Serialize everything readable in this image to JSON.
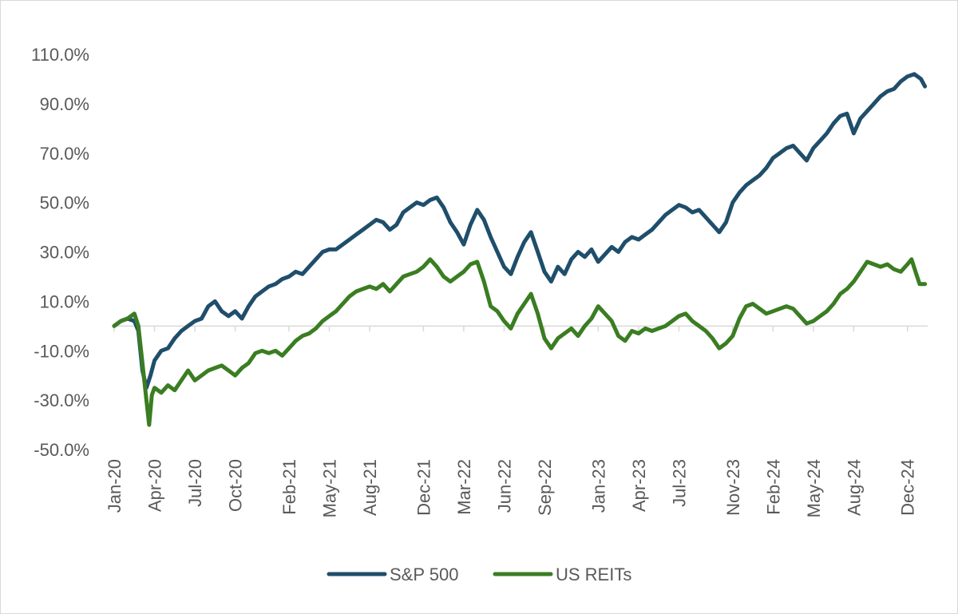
{
  "chart_data": {
    "type": "line",
    "title": "",
    "xlabel": "",
    "ylabel": "",
    "ylim": [
      -50,
      110
    ],
    "y_ticks": [
      "110.0%",
      "90.0%",
      "70.0%",
      "50.0%",
      "30.0%",
      "10.0%",
      "-10.0%",
      "-30.0%",
      "-50.0%"
    ],
    "y_tick_values": [
      110,
      90,
      70,
      50,
      30,
      10,
      -10,
      -30,
      -50
    ],
    "x_ticks": [
      "Jan-20",
      "Apr-20",
      "Jul-20",
      "Oct-20",
      "Feb-21",
      "May-21",
      "Aug-21",
      "Dec-21",
      "Mar-22",
      "Jun-22",
      "Sep-22",
      "Jan-23",
      "Apr-23",
      "Jul-23",
      "Nov-23",
      "Feb-24",
      "May-24",
      "Aug-24",
      "Dec-24"
    ],
    "x_tick_months": [
      0,
      3,
      6,
      9,
      13,
      16,
      19,
      23,
      26,
      29,
      32,
      36,
      39,
      42,
      46,
      49,
      52,
      55,
      59
    ],
    "x_range_months": [
      0,
      60.5
    ],
    "grid": false,
    "legend": "bottom",
    "series": [
      {
        "name": "S&P 500",
        "color": "#1f4e6b",
        "points": [
          [
            0,
            0
          ],
          [
            0.5,
            2
          ],
          [
            1,
            3
          ],
          [
            1.5,
            2
          ],
          [
            1.8,
            -2
          ],
          [
            2.1,
            -18
          ],
          [
            2.4,
            -25
          ],
          [
            2.7,
            -20
          ],
          [
            3,
            -14
          ],
          [
            3.5,
            -10
          ],
          [
            4,
            -9
          ],
          [
            4.5,
            -5
          ],
          [
            5,
            -2
          ],
          [
            5.5,
            0
          ],
          [
            6,
            2
          ],
          [
            6.5,
            3
          ],
          [
            7,
            8
          ],
          [
            7.5,
            10
          ],
          [
            8,
            6
          ],
          [
            8.5,
            4
          ],
          [
            9,
            6
          ],
          [
            9.5,
            3
          ],
          [
            10,
            8
          ],
          [
            10.5,
            12
          ],
          [
            11,
            14
          ],
          [
            11.5,
            16
          ],
          [
            12,
            17
          ],
          [
            12.5,
            19
          ],
          [
            13,
            20
          ],
          [
            13.5,
            22
          ],
          [
            14,
            21
          ],
          [
            14.5,
            24
          ],
          [
            15,
            27
          ],
          [
            15.5,
            30
          ],
          [
            16,
            31
          ],
          [
            16.5,
            31
          ],
          [
            17,
            33
          ],
          [
            17.5,
            35
          ],
          [
            18,
            37
          ],
          [
            18.5,
            39
          ],
          [
            19,
            41
          ],
          [
            19.5,
            43
          ],
          [
            20,
            42
          ],
          [
            20.5,
            39
          ],
          [
            21,
            41
          ],
          [
            21.5,
            46
          ],
          [
            22,
            48
          ],
          [
            22.5,
            50
          ],
          [
            23,
            49
          ],
          [
            23.5,
            51
          ],
          [
            24,
            52
          ],
          [
            24.5,
            48
          ],
          [
            25,
            42
          ],
          [
            25.5,
            38
          ],
          [
            26,
            33
          ],
          [
            26.5,
            41
          ],
          [
            27,
            47
          ],
          [
            27.5,
            43
          ],
          [
            28,
            36
          ],
          [
            28.5,
            30
          ],
          [
            29,
            24
          ],
          [
            29.5,
            21
          ],
          [
            30,
            28
          ],
          [
            30.5,
            34
          ],
          [
            31,
            38
          ],
          [
            31.5,
            30
          ],
          [
            32,
            22
          ],
          [
            32.5,
            18
          ],
          [
            33,
            24
          ],
          [
            33.5,
            21
          ],
          [
            34,
            27
          ],
          [
            34.5,
            30
          ],
          [
            35,
            28
          ],
          [
            35.5,
            31
          ],
          [
            36,
            26
          ],
          [
            36.5,
            29
          ],
          [
            37,
            32
          ],
          [
            37.5,
            30
          ],
          [
            38,
            34
          ],
          [
            38.5,
            36
          ],
          [
            39,
            35
          ],
          [
            39.5,
            37
          ],
          [
            40,
            39
          ],
          [
            40.5,
            42
          ],
          [
            41,
            45
          ],
          [
            41.5,
            47
          ],
          [
            42,
            49
          ],
          [
            42.5,
            48
          ],
          [
            43,
            46
          ],
          [
            43.5,
            47
          ],
          [
            44,
            44
          ],
          [
            44.5,
            41
          ],
          [
            45,
            38
          ],
          [
            45.5,
            42
          ],
          [
            46,
            50
          ],
          [
            46.5,
            54
          ],
          [
            47,
            57
          ],
          [
            47.5,
            59
          ],
          [
            48,
            61
          ],
          [
            48.5,
            64
          ],
          [
            49,
            68
          ],
          [
            49.5,
            70
          ],
          [
            50,
            72
          ],
          [
            50.5,
            73
          ],
          [
            51,
            70
          ],
          [
            51.5,
            67
          ],
          [
            52,
            72
          ],
          [
            52.5,
            75
          ],
          [
            53,
            78
          ],
          [
            53.5,
            82
          ],
          [
            54,
            85
          ],
          [
            54.5,
            86
          ],
          [
            55,
            78
          ],
          [
            55.5,
            84
          ],
          [
            56,
            87
          ],
          [
            56.5,
            90
          ],
          [
            57,
            93
          ],
          [
            57.5,
            95
          ],
          [
            58,
            96
          ],
          [
            58.5,
            99
          ],
          [
            59,
            101
          ],
          [
            59.5,
            102
          ],
          [
            60,
            100
          ],
          [
            60.3,
            97
          ]
        ]
      },
      {
        "name": "US REITs",
        "color": "#3a7d22",
        "points": [
          [
            0,
            0
          ],
          [
            0.5,
            2
          ],
          [
            1,
            3
          ],
          [
            1.5,
            5
          ],
          [
            1.8,
            0
          ],
          [
            2.1,
            -15
          ],
          [
            2.4,
            -30
          ],
          [
            2.6,
            -40
          ],
          [
            2.8,
            -28
          ],
          [
            3,
            -25
          ],
          [
            3.5,
            -27
          ],
          [
            4,
            -24
          ],
          [
            4.5,
            -26
          ],
          [
            5,
            -22
          ],
          [
            5.5,
            -18
          ],
          [
            6,
            -22
          ],
          [
            6.5,
            -20
          ],
          [
            7,
            -18
          ],
          [
            7.5,
            -17
          ],
          [
            8,
            -16
          ],
          [
            8.5,
            -18
          ],
          [
            9,
            -20
          ],
          [
            9.5,
            -17
          ],
          [
            10,
            -15
          ],
          [
            10.5,
            -11
          ],
          [
            11,
            -10
          ],
          [
            11.5,
            -11
          ],
          [
            12,
            -10
          ],
          [
            12.5,
            -12
          ],
          [
            13,
            -9
          ],
          [
            13.5,
            -6
          ],
          [
            14,
            -4
          ],
          [
            14.5,
            -3
          ],
          [
            15,
            -1
          ],
          [
            15.5,
            2
          ],
          [
            16,
            4
          ],
          [
            16.5,
            6
          ],
          [
            17,
            9
          ],
          [
            17.5,
            12
          ],
          [
            18,
            14
          ],
          [
            18.5,
            15
          ],
          [
            19,
            16
          ],
          [
            19.5,
            15
          ],
          [
            20,
            17
          ],
          [
            20.5,
            14
          ],
          [
            21,
            17
          ],
          [
            21.5,
            20
          ],
          [
            22,
            21
          ],
          [
            22.5,
            22
          ],
          [
            23,
            24
          ],
          [
            23.5,
            27
          ],
          [
            24,
            24
          ],
          [
            24.5,
            20
          ],
          [
            25,
            18
          ],
          [
            25.5,
            20
          ],
          [
            26,
            22
          ],
          [
            26.5,
            25
          ],
          [
            27,
            26
          ],
          [
            27.5,
            18
          ],
          [
            28,
            8
          ],
          [
            28.5,
            6
          ],
          [
            29,
            2
          ],
          [
            29.5,
            -1
          ],
          [
            30,
            5
          ],
          [
            30.5,
            9
          ],
          [
            31,
            13
          ],
          [
            31.5,
            5
          ],
          [
            32,
            -5
          ],
          [
            32.5,
            -9
          ],
          [
            33,
            -5
          ],
          [
            33.5,
            -3
          ],
          [
            34,
            -1
          ],
          [
            34.5,
            -4
          ],
          [
            35,
            0
          ],
          [
            35.5,
            3
          ],
          [
            36,
            8
          ],
          [
            36.5,
            5
          ],
          [
            37,
            2
          ],
          [
            37.5,
            -4
          ],
          [
            38,
            -6
          ],
          [
            38.5,
            -2
          ],
          [
            39,
            -3
          ],
          [
            39.5,
            -1
          ],
          [
            40,
            -2
          ],
          [
            40.5,
            -1
          ],
          [
            41,
            0
          ],
          [
            41.5,
            2
          ],
          [
            42,
            4
          ],
          [
            42.5,
            5
          ],
          [
            43,
            2
          ],
          [
            43.5,
            0
          ],
          [
            44,
            -2
          ],
          [
            44.5,
            -5
          ],
          [
            45,
            -9
          ],
          [
            45.5,
            -7
          ],
          [
            46,
            -4
          ],
          [
            46.5,
            3
          ],
          [
            47,
            8
          ],
          [
            47.5,
            9
          ],
          [
            48,
            7
          ],
          [
            48.5,
            5
          ],
          [
            49,
            6
          ],
          [
            49.5,
            7
          ],
          [
            50,
            8
          ],
          [
            50.5,
            7
          ],
          [
            51,
            4
          ],
          [
            51.5,
            1
          ],
          [
            52,
            2
          ],
          [
            52.5,
            4
          ],
          [
            53,
            6
          ],
          [
            53.5,
            9
          ],
          [
            54,
            13
          ],
          [
            54.5,
            15
          ],
          [
            55,
            18
          ],
          [
            55.5,
            22
          ],
          [
            56,
            26
          ],
          [
            56.5,
            25
          ],
          [
            57,
            24
          ],
          [
            57.5,
            25
          ],
          [
            58,
            23
          ],
          [
            58.5,
            22
          ],
          [
            59,
            25
          ],
          [
            59.3,
            27
          ],
          [
            59.6,
            22
          ],
          [
            59.9,
            17
          ],
          [
            60.3,
            17
          ]
        ]
      }
    ]
  }
}
